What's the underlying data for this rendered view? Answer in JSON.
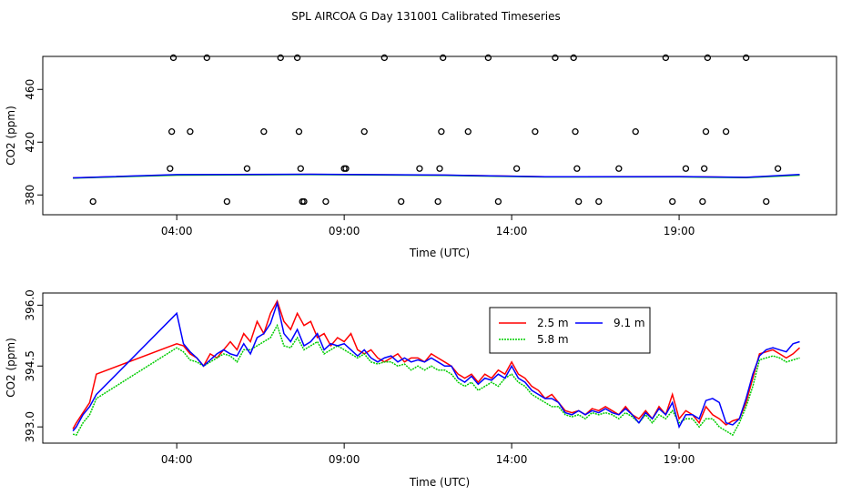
{
  "figure_title": "SPL AIRCOA G  Day 131001  Calibrated Timeseries",
  "chart_data": [
    {
      "type": "scatter",
      "title": "SPL AIRCOA G  Day 131001  Calibrated Timeseries",
      "xlabel": "Time (UTC)",
      "ylabel": "CO2 (ppm)",
      "xlim": [
        0.0,
        23.7
      ],
      "ylim": [
        365,
        485
      ],
      "xticks": [
        4,
        9,
        14,
        19
      ],
      "xtick_labels": [
        "04:00",
        "09:00",
        "14:00",
        "19:00"
      ],
      "yticks": [
        380,
        420,
        460
      ],
      "ytick_labels": [
        "380",
        "420",
        "460"
      ],
      "series_lines": [
        {
          "name": "2.5 m",
          "color": "#ff0000",
          "x": [
            0.9,
            4,
            8,
            12,
            15,
            19,
            21,
            22.6
          ],
          "values": [
            392.9,
            395.2,
            395.6,
            395.0,
            393.8,
            393.9,
            393.3,
            395.3
          ]
        },
        {
          "name": "5.8 m",
          "color": "#00cd00",
          "x": [
            0.9,
            4,
            8,
            12,
            15,
            19,
            21,
            22.6
          ],
          "values": [
            392.8,
            395.0,
            395.4,
            394.8,
            393.6,
            393.7,
            393.1,
            395.0
          ]
        },
        {
          "name": "9.1 m",
          "color": "#0000ff",
          "x": [
            0.9,
            4,
            8,
            12,
            15,
            19,
            21,
            22.6
          ],
          "values": [
            392.9,
            395.4,
            395.7,
            395.1,
            393.8,
            393.9,
            393.4,
            395.5
          ]
        }
      ],
      "calibration_points": {
        "x": [
          1.5,
          3.8,
          3.85,
          3.9,
          4.4,
          4.9,
          5.5,
          6.1,
          6.6,
          7.1,
          7.6,
          7.65,
          7.7,
          7.75,
          7.8,
          8.45,
          9.0,
          9.05,
          9.6,
          10.2,
          10.7,
          11.25,
          11.8,
          11.85,
          11.9,
          11.95,
          12.7,
          13.3,
          13.6,
          14.15,
          14.7,
          15.3,
          15.85,
          15.9,
          15.95,
          16.0,
          16.6,
          17.2,
          17.7,
          18.6,
          18.8,
          19.2,
          19.7,
          19.75,
          19.8,
          19.85,
          20.4,
          21.0,
          21.6,
          21.95
        ],
        "values": [
          375,
          400,
          428,
          484,
          428,
          484,
          375,
          400,
          428,
          484,
          484,
          428,
          400,
          375,
          375,
          375,
          400,
          400,
          428,
          484,
          375,
          400,
          375,
          400,
          428,
          484,
          428,
          484,
          375,
          400,
          428,
          484,
          484,
          428,
          400,
          375,
          375,
          400,
          428,
          484,
          375,
          400,
          375,
          400,
          428,
          484,
          428,
          484,
          375,
          400
        ]
      }
    },
    {
      "type": "line",
      "xlabel": "Time (UTC)",
      "ylabel": "CO2 (ppm)",
      "xlim": [
        0.0,
        23.7
      ],
      "ylim": [
        392.6,
        396.3
      ],
      "xticks": [
        4,
        9,
        14,
        19
      ],
      "xtick_labels": [
        "04:00",
        "09:00",
        "14:00",
        "19:00"
      ],
      "yticks": [
        393.0,
        394.5,
        396.0
      ],
      "ytick_labels": [
        "393.0",
        "394.5",
        "396.0"
      ],
      "legend": [
        "2.5 m",
        "5.8 m",
        "9.1 m"
      ],
      "legend_position": "top-right",
      "x": [
        0.9,
        1.0,
        1.2,
        1.4,
        1.6,
        4.0,
        4.2,
        4.4,
        4.6,
        4.8,
        5.0,
        5.2,
        5.4,
        5.6,
        5.8,
        6.0,
        6.2,
        6.4,
        6.6,
        6.8,
        7.0,
        7.2,
        7.4,
        7.6,
        7.8,
        8.0,
        8.2,
        8.4,
        8.6,
        8.8,
        9.0,
        9.2,
        9.4,
        9.6,
        9.8,
        10.0,
        10.2,
        10.4,
        10.6,
        10.8,
        11.0,
        11.2,
        11.4,
        11.6,
        11.8,
        12.0,
        12.2,
        12.4,
        12.6,
        12.8,
        13.0,
        13.2,
        13.4,
        13.6,
        13.8,
        14.0,
        14.2,
        14.4,
        14.6,
        14.8,
        15.0,
        15.2,
        15.4,
        15.6,
        15.8,
        16.0,
        16.2,
        16.4,
        16.6,
        16.8,
        17.0,
        17.2,
        17.4,
        17.6,
        17.8,
        18.0,
        18.2,
        18.4,
        18.6,
        18.8,
        19.0,
        19.2,
        19.4,
        19.6,
        19.8,
        20.0,
        20.2,
        20.4,
        20.6,
        20.8,
        21.0,
        21.2,
        21.4,
        21.6,
        21.8,
        22.0,
        22.2,
        22.4,
        22.6
      ],
      "series": [
        {
          "name": "2.5 m",
          "color": "#ff0000",
          "values": [
            392.95,
            393.1,
            393.35,
            393.6,
            394.3,
            395.05,
            395.0,
            394.8,
            394.7,
            394.5,
            394.8,
            394.7,
            394.9,
            395.1,
            394.9,
            395.3,
            395.1,
            395.6,
            395.3,
            395.8,
            396.1,
            395.6,
            395.4,
            395.8,
            395.5,
            395.6,
            395.2,
            395.3,
            395.0,
            395.2,
            395.1,
            395.3,
            394.9,
            394.8,
            394.9,
            394.7,
            394.6,
            394.7,
            394.8,
            394.6,
            394.7,
            394.7,
            394.6,
            394.8,
            394.7,
            394.6,
            394.5,
            394.3,
            394.2,
            394.3,
            394.1,
            394.3,
            394.2,
            394.4,
            394.3,
            394.6,
            394.3,
            394.2,
            394.0,
            393.9,
            393.7,
            393.8,
            393.6,
            393.4,
            393.35,
            393.4,
            393.3,
            393.45,
            393.4,
            393.5,
            393.4,
            393.3,
            393.5,
            393.3,
            393.2,
            393.4,
            393.2,
            393.5,
            393.3,
            393.8,
            393.2,
            393.4,
            393.3,
            393.1,
            393.5,
            393.3,
            393.2,
            393.05,
            393.15,
            393.2,
            393.6,
            394.2,
            394.8,
            394.85,
            394.9,
            394.8,
            394.7,
            394.8,
            394.95
          ]
        },
        {
          "name": "5.8 m",
          "color": "#00cd00",
          "values": [
            392.82,
            392.8,
            393.1,
            393.3,
            393.7,
            394.95,
            394.85,
            394.65,
            394.6,
            394.5,
            394.6,
            394.7,
            394.8,
            394.75,
            394.6,
            394.9,
            394.9,
            395.0,
            395.1,
            395.2,
            395.5,
            395.0,
            394.95,
            395.2,
            394.9,
            395.0,
            395.1,
            394.8,
            394.9,
            395.0,
            394.9,
            394.8,
            394.7,
            394.8,
            394.6,
            394.55,
            394.6,
            394.6,
            394.5,
            394.55,
            394.4,
            394.5,
            394.4,
            394.5,
            394.4,
            394.4,
            394.3,
            394.1,
            394.0,
            394.1,
            393.9,
            394.0,
            394.1,
            394.0,
            394.2,
            394.3,
            394.1,
            394.0,
            393.8,
            393.7,
            393.6,
            393.5,
            393.5,
            393.3,
            393.25,
            393.3,
            393.2,
            393.35,
            393.3,
            393.35,
            393.3,
            393.2,
            393.35,
            393.25,
            393.1,
            393.3,
            393.1,
            393.3,
            393.2,
            393.4,
            393.1,
            393.2,
            393.2,
            393.0,
            393.2,
            393.2,
            393.0,
            392.9,
            392.8,
            393.1,
            393.5,
            394.0,
            394.65,
            394.7,
            394.75,
            394.7,
            394.6,
            394.65,
            394.7
          ]
        },
        {
          "name": "9.1 m",
          "color": "#0000ff",
          "values": [
            392.9,
            393.0,
            393.3,
            393.5,
            393.8,
            395.8,
            395.05,
            394.85,
            394.7,
            394.5,
            394.65,
            394.8,
            394.9,
            394.8,
            394.75,
            395.05,
            394.8,
            395.2,
            395.3,
            395.55,
            396.05,
            395.3,
            395.1,
            395.4,
            395.0,
            395.1,
            395.3,
            394.9,
            395.05,
            395.0,
            395.05,
            394.9,
            394.75,
            394.9,
            394.7,
            394.6,
            394.7,
            394.75,
            394.6,
            394.7,
            394.6,
            394.65,
            394.6,
            394.7,
            394.6,
            394.5,
            394.5,
            394.2,
            394.1,
            394.25,
            394.05,
            394.2,
            394.15,
            394.3,
            394.2,
            394.5,
            394.2,
            394.1,
            393.9,
            393.8,
            393.7,
            393.7,
            393.6,
            393.35,
            393.3,
            393.4,
            393.3,
            393.4,
            393.35,
            393.45,
            393.35,
            393.3,
            393.45,
            393.3,
            393.1,
            393.35,
            393.2,
            393.45,
            393.3,
            393.6,
            393.0,
            393.3,
            393.3,
            393.2,
            393.65,
            393.7,
            393.6,
            393.1,
            393.05,
            393.2,
            393.7,
            394.3,
            394.75,
            394.9,
            394.95,
            394.9,
            394.85,
            395.05,
            395.1
          ]
        }
      ]
    }
  ]
}
